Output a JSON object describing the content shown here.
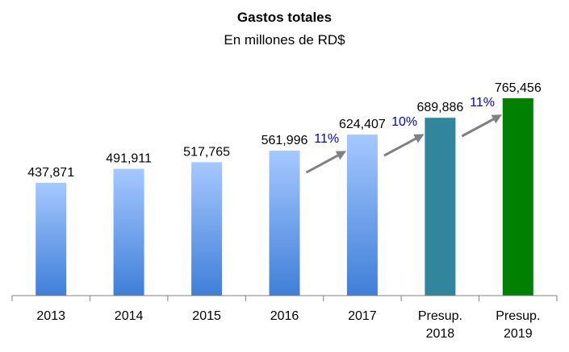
{
  "chart_data": {
    "type": "bar",
    "title": "Gastos totales",
    "subtitle": "En millones de RD$",
    "categories": [
      [
        "2013"
      ],
      [
        "2014"
      ],
      [
        "2015"
      ],
      [
        "2016"
      ],
      [
        "2017"
      ],
      [
        "Presup.",
        "2018"
      ],
      [
        "Presup.",
        "2019"
      ]
    ],
    "values": [
      437871,
      491911,
      517765,
      561996,
      624407,
      689886,
      765456
    ],
    "value_labels": [
      "437,871",
      "491,911",
      "517,765",
      "561,996",
      "624,407",
      "689,886",
      "765,456"
    ],
    "ylim": [
      0,
      800000
    ],
    "grid": false,
    "legend": "none",
    "bar_styles": [
      "gradient-blue",
      "gradient-blue",
      "gradient-blue",
      "gradient-blue",
      "gradient-blue",
      "solid-teal",
      "solid-green"
    ],
    "colors": {
      "gradient_top": "#a6c8ff",
      "gradient_bottom": "#3f7fd8",
      "teal": "#31859c",
      "green": "#008000",
      "arrow": "#808080",
      "growth_text": "#0000cc",
      "axis": "#808080"
    },
    "annotations": [
      {
        "text": "11%",
        "from_bar": 3,
        "to_bar": 4
      },
      {
        "text": "10%",
        "from_bar": 4,
        "to_bar": 5
      },
      {
        "text": "11%",
        "from_bar": 5,
        "to_bar": 6
      }
    ]
  }
}
